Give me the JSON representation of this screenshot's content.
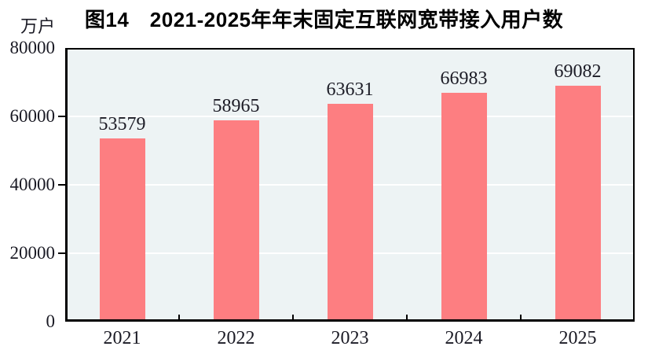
{
  "chart_data": {
    "type": "bar",
    "title": "图14　2021-2025年年末固定互联网宽带接入用户数",
    "unit_label": "万户",
    "categories": [
      "2021",
      "2022",
      "2023",
      "2024",
      "2025"
    ],
    "values": [
      53579,
      58965,
      63631,
      66983,
      69082
    ],
    "ylim": [
      0,
      80000
    ],
    "yticks": [
      0,
      20000,
      40000,
      60000,
      80000
    ],
    "grid": "horizontal gridlines at 20000/40000/60000",
    "legend_position": "none",
    "colors": {
      "bar": "#FD7E81",
      "plot_background": "#EDF3F4",
      "gridline": "#FFFFFF",
      "axis": "#000000",
      "text": "#1A1A24"
    }
  }
}
